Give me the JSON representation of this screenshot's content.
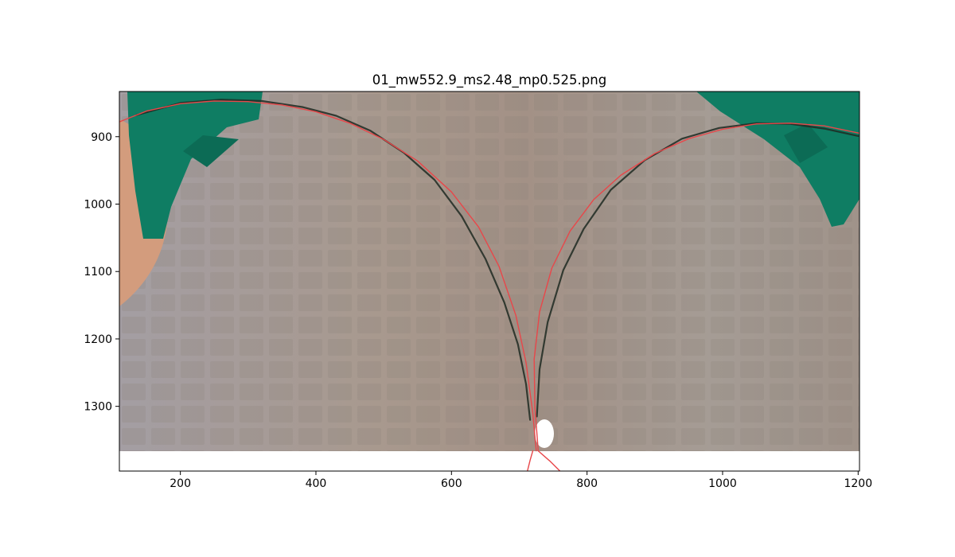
{
  "chart_data": {
    "type": "scatter",
    "title": "01_mw552.9_ms2.48_mp0.525.png",
    "xlabel": "",
    "ylabel": "",
    "xlim": [
      110,
      1202
    ],
    "ylim": [
      1396,
      833
    ],
    "y_inverted": true,
    "grid": false,
    "xticks": [
      200,
      400,
      600,
      800,
      1000,
      1200
    ],
    "yticks": [
      900,
      1000,
      1100,
      1200,
      1300
    ],
    "image_extent": {
      "x": [
        110,
        1202
      ],
      "y": [
        833,
        1366
      ]
    },
    "background_image": "photo of a bubble/film bridging two green holders against a tiled wall",
    "colors": {
      "fit": "#e8474a",
      "trace": "#1e2a22",
      "holder": "#0f7d63",
      "wall": "#a89c94",
      "hand": "#d39c7d"
    },
    "series": [
      {
        "style": "dark traced contour (left)",
        "x": [
          135,
          200,
          260,
          320,
          380,
          430,
          480,
          530,
          575,
          615,
          650,
          678,
          698,
          710,
          716
        ],
        "y": [
          868,
          850,
          845,
          847,
          856,
          869,
          891,
          924,
          964,
          1018,
          1081,
          1146,
          1208,
          1267,
          1320
        ]
      },
      {
        "style": "dark traced contour (right)",
        "x": [
          726,
          730,
          742,
          765,
          795,
          835,
          885,
          940,
          995,
          1050,
          1100,
          1150,
          1200
        ],
        "y": [
          1315,
          1245,
          1175,
          1098,
          1037,
          979,
          935,
          903,
          887,
          880,
          881,
          888,
          899
        ]
      },
      {
        "style": "red fitted arc (left)",
        "x": [
          110,
          150,
          200,
          250,
          300,
          350,
          400,
          450,
          500,
          550,
          600,
          640,
          670,
          695,
          710,
          720,
          725
        ],
        "y": [
          878,
          862,
          851,
          847,
          848,
          853,
          863,
          880,
          904,
          936,
          982,
          1034,
          1092,
          1165,
          1235,
          1310,
          1366
        ]
      },
      {
        "style": "red fitted arc (right)",
        "x": [
          1202,
          1150,
          1100,
          1050,
          1000,
          950,
          900,
          850,
          810,
          775,
          748,
          730,
          722,
          723,
          728
        ],
        "y": [
          895,
          884,
          880,
          881,
          889,
          903,
          925,
          957,
          993,
          1040,
          1095,
          1160,
          1230,
          1300,
          1366
        ]
      },
      {
        "style": "red fitted arc (below image, left branch)",
        "x": [
          720,
          716,
          712
        ],
        "y": [
          1366,
          1380,
          1396
        ]
      },
      {
        "style": "red fitted arc (below image, right branch)",
        "x": [
          728,
          745,
          760
        ],
        "y": [
          1366,
          1381,
          1396
        ]
      }
    ]
  }
}
